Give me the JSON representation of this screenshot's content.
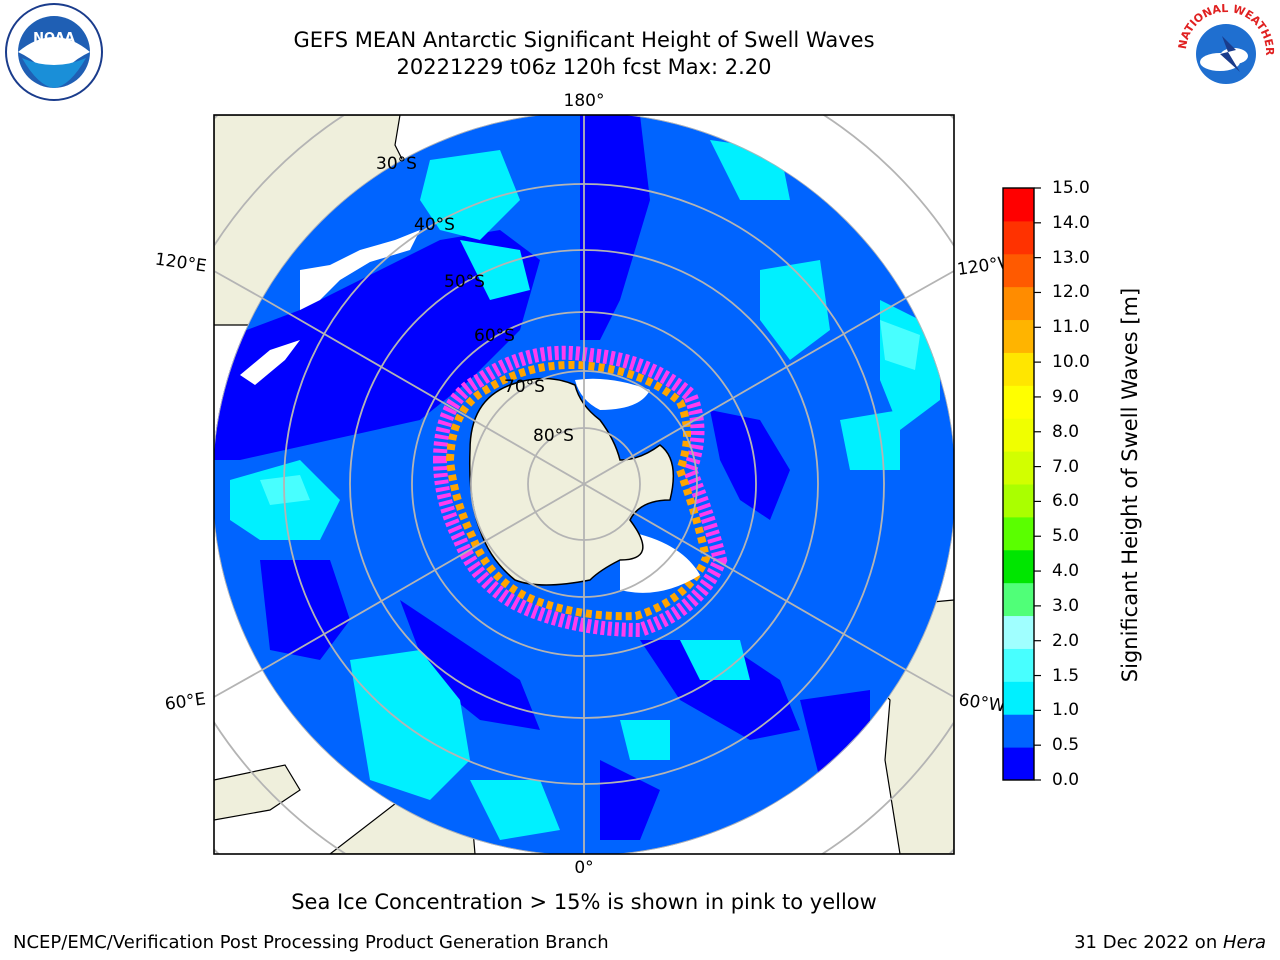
{
  "header": {
    "title_line1": "GEFS MEAN Antarctic Significant Height of Swell Waves",
    "title_line2": "20221229 t06z 120h fcst   Max: 2.20"
  },
  "logos": {
    "left": {
      "icon": "noaa-logo-icon",
      "text": "NOAA"
    },
    "right": {
      "icon": "nws-logo-icon",
      "text": "NATIONAL WEATHER SERVICE"
    }
  },
  "map": {
    "projection": "south-polar-stereographic",
    "longitude_labels": [
      "180°",
      "120°E",
      "120°W",
      "60°E",
      "60°W",
      "0°"
    ],
    "latitude_labels": [
      "30°S",
      "40°S",
      "50°S",
      "60°S",
      "70°S",
      "80°S"
    ],
    "colors": {
      "land": "#efefdc",
      "coast": "#000000",
      "grid": "#b4b4b4",
      "ice_pink": "#ff3cf0",
      "ice_orange": "#ffa500",
      "ice_white": "#ffffff"
    }
  },
  "colorbar": {
    "label": "Significant Height of Swell Waves [m]",
    "ticks": [
      "15.0",
      "14.0",
      "13.0",
      "12.0",
      "11.0",
      "10.0",
      "9.0",
      "8.0",
      "7.0",
      "6.0",
      "5.0",
      "4.0",
      "3.0",
      "2.0",
      "1.5",
      "1.0",
      "0.5",
      "0.0"
    ],
    "colors": [
      "#0000ff",
      "#0064ff",
      "#00f0ff",
      "#48ffff",
      "#a0ffff",
      "#50ff78",
      "#00e600",
      "#5aff00",
      "#aaff00",
      "#d2ff00",
      "#f0ff00",
      "#ffff00",
      "#ffe600",
      "#ffb400",
      "#ff8c00",
      "#ff5a00",
      "#ff3200",
      "#ff0000"
    ]
  },
  "notes": {
    "ice_note": "Sea Ice Concentration > 15% is shown in pink to yellow",
    "footer_left": "NCEP/EMC/Verification Post Processing Product Generation Branch",
    "footer_date": "31 Dec 2022 on ",
    "footer_host": "Hera"
  }
}
